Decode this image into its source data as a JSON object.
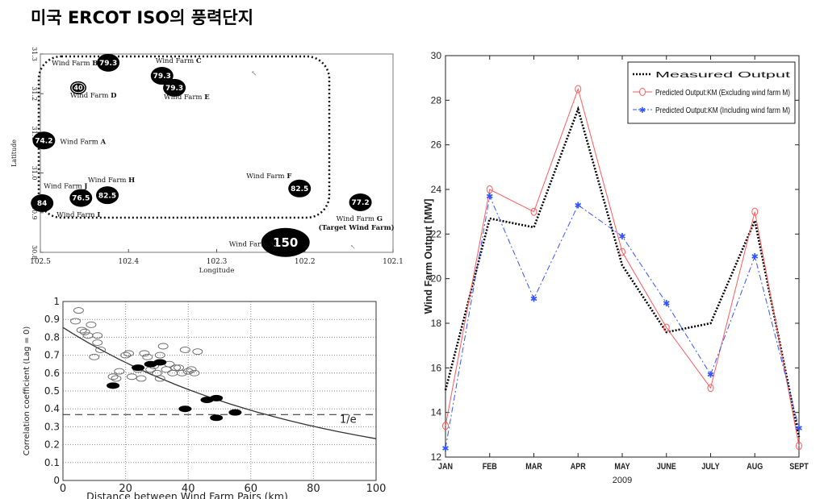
{
  "title": "미국 ERCOT ISO의 풍력단지",
  "chart_data": [
    {
      "type": "scatter",
      "xlabel": "Longitude",
      "ylabel": "Latitude",
      "xlim": [
        102.5,
        102.1
      ],
      "ylim": [
        30.8,
        31.3
      ],
      "xticks": [
        "102.5",
        "102.4",
        "102.3",
        "102.2",
        "102.1"
      ],
      "yticks": [
        "30.8",
        "30.9",
        "31.0",
        "31.1",
        "31.2",
        "31.3"
      ],
      "region_label": "(Target Wind Farm)",
      "farms": [
        {
          "name": "Wind Farm B",
          "value": "79.3",
          "lon": 102.423,
          "lat": 31.278
        },
        {
          "name": "Wind Farm C",
          "value": "79.3",
          "lon": 102.362,
          "lat": 31.245
        },
        {
          "name": "Wind Farm D",
          "value": "40",
          "lon": 102.457,
          "lat": 31.215
        },
        {
          "name": "Wind Farm E",
          "value": "79.3",
          "lon": 102.348,
          "lat": 31.215
        },
        {
          "name": "Wind Farm A",
          "value": "74.2",
          "lon": 102.496,
          "lat": 31.082
        },
        {
          "name": "Wind Farm J",
          "value": "76.5",
          "lon": 102.454,
          "lat": 30.937
        },
        {
          "name": "Wind Farm H",
          "value": "82.5",
          "lon": 102.424,
          "lat": 30.944
        },
        {
          "name": "Wind Farm F",
          "value": "82.5",
          "lon": 102.206,
          "lat": 30.961
        },
        {
          "name": "Wind Farm G",
          "value": "77.2",
          "lon": 102.137,
          "lat": 30.926
        },
        {
          "name": "Wind Farm I",
          "value": "84",
          "lon": 102.498,
          "lat": 30.924
        },
        {
          "name": "Wind Farm M",
          "value": "150",
          "lon": 102.222,
          "lat": 30.825
        }
      ]
    },
    {
      "type": "scatter",
      "xlabel": "Distance between Wind Farm Pairs (km)",
      "ylabel": "Correlation coefficient (Lag = 0)",
      "xlim": [
        0,
        100
      ],
      "ylim": [
        0,
        1
      ],
      "xticks": [
        "0",
        "20",
        "40",
        "60",
        "80",
        "100"
      ],
      "yticks": [
        "0",
        "0.1",
        "0.2",
        "0.3",
        "0.4",
        "0.5",
        "0.6",
        "0.7",
        "0.8",
        "0.9",
        "1"
      ],
      "reference_line": {
        "y": 0.368,
        "label": "1/e"
      },
      "curve": "exponential decay",
      "open_points": [
        [
          5,
          0.95
        ],
        [
          4,
          0.89
        ],
        [
          6,
          0.84
        ],
        [
          7,
          0.83
        ],
        [
          9,
          0.87
        ],
        [
          8,
          0.81
        ],
        [
          11,
          0.81
        ],
        [
          11,
          0.77
        ],
        [
          10,
          0.69
        ],
        [
          12,
          0.73
        ],
        [
          16,
          0.58
        ],
        [
          17,
          0.57
        ],
        [
          18,
          0.61
        ],
        [
          20,
          0.7
        ],
        [
          21,
          0.71
        ],
        [
          22,
          0.58
        ],
        [
          24,
          0.62
        ],
        [
          25,
          0.57
        ],
        [
          26,
          0.71
        ],
        [
          27,
          0.69
        ],
        [
          28,
          0.62
        ],
        [
          29,
          0.64
        ],
        [
          30,
          0.6
        ],
        [
          31,
          0.57
        ],
        [
          32,
          0.75
        ],
        [
          31,
          0.7
        ],
        [
          33,
          0.62
        ],
        [
          34,
          0.65
        ],
        [
          35,
          0.6
        ],
        [
          36,
          0.63
        ],
        [
          37,
          0.63
        ],
        [
          38,
          0.6
        ],
        [
          39,
          0.73
        ],
        [
          40,
          0.61
        ],
        [
          41,
          0.62
        ],
        [
          42,
          0.6
        ],
        [
          43,
          0.72
        ]
      ],
      "filled_points": [
        [
          16,
          0.53
        ],
        [
          24,
          0.63
        ],
        [
          28,
          0.65
        ],
        [
          31,
          0.66
        ],
        [
          39,
          0.4
        ],
        [
          46,
          0.45
        ],
        [
          49,
          0.46
        ],
        [
          49,
          0.35
        ],
        [
          55,
          0.38
        ]
      ]
    },
    {
      "type": "line",
      "categories": [
        "JAN",
        "FEB",
        "MAR",
        "APR",
        "MAY",
        "JUNE",
        "JULY",
        "AUG",
        "SEPT"
      ],
      "xlabel": "2009",
      "ylabel": "Wind Farm Output [MW]",
      "ylim": [
        12,
        30
      ],
      "yticks": [
        "12",
        "14",
        "16",
        "18",
        "20",
        "22",
        "24",
        "26",
        "28",
        "30"
      ],
      "legend_position": "top-right",
      "series": [
        {
          "name": "Measured Output",
          "color": "#000000",
          "style": "dotted",
          "values": [
            15.0,
            22.7,
            22.3,
            27.6,
            20.6,
            17.6,
            18.0,
            22.6,
            12.9
          ]
        },
        {
          "name": "Predicted Output:KM (Excluding wind farm M)",
          "color": "#ff5a5a",
          "style": "solid",
          "marker": "circle",
          "values": [
            13.4,
            24.0,
            23.0,
            28.5,
            21.2,
            17.8,
            15.1,
            23.0,
            12.5
          ]
        },
        {
          "name": "Predicted Output:KM (Including wind farm M)",
          "color": "#3355ff",
          "style": "dashdot",
          "marker": "star",
          "values": [
            12.4,
            23.7,
            19.1,
            23.3,
            21.9,
            18.9,
            15.7,
            21.0,
            13.3
          ]
        }
      ]
    }
  ]
}
